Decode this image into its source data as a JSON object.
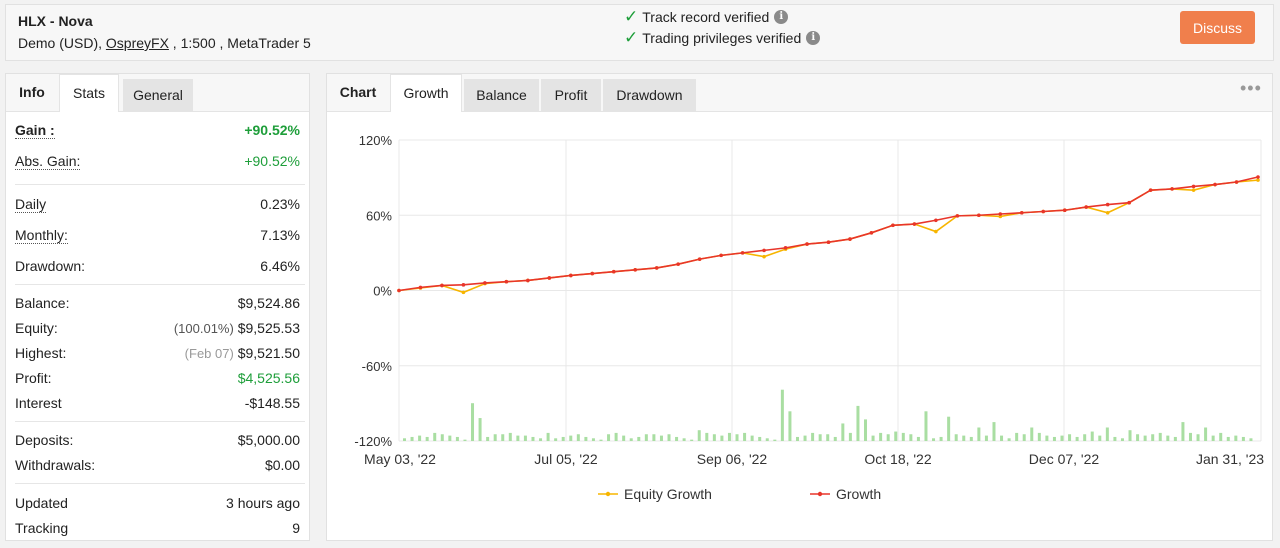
{
  "header": {
    "account_name": "HLX - Nova",
    "info_prefix": "Demo (USD), ",
    "broker": "OspreyFX",
    "info_suffix": " , 1:500 , MetaTrader 5",
    "verify_track": "Track record verified",
    "verify_trading": "Trading privileges verified",
    "discuss_label": "Discuss"
  },
  "left_tabs": {
    "title": "Info",
    "active": "Stats",
    "other": "General"
  },
  "stats": {
    "gain": {
      "label": "Gain :",
      "value": "+90.52%"
    },
    "abs_gain": {
      "label": "Abs. Gain:",
      "value": "+90.52%"
    },
    "daily": {
      "label": "Daily",
      "value": "0.23%"
    },
    "monthly": {
      "label": "Monthly:",
      "value": "7.13%"
    },
    "drawdown": {
      "label": "Drawdown:",
      "value": "6.46%"
    },
    "balance": {
      "label": "Balance:",
      "value": "$9,524.86"
    },
    "equity": {
      "label": "Equity:",
      "prefix": "(100.01%)",
      "value": "$9,525.53"
    },
    "highest": {
      "label": "Highest:",
      "prefix": "(Feb 07)",
      "value": "$9,521.50"
    },
    "profit": {
      "label": "Profit:",
      "value": "$4,525.56"
    },
    "interest": {
      "label": "Interest",
      "value": "-$148.55"
    },
    "deposits": {
      "label": "Deposits:",
      "value": "$5,000.00"
    },
    "withdrawals": {
      "label": "Withdrawals:",
      "value": "$0.00"
    },
    "updated": {
      "label": "Updated",
      "value": "3 hours ago"
    },
    "tracking": {
      "label": "Tracking",
      "value": "9"
    }
  },
  "chart_tabs": {
    "title": "Chart",
    "active": "Growth",
    "others": [
      "Balance",
      "Profit",
      "Drawdown"
    ]
  },
  "colors": {
    "equity": "#f7b500",
    "growth": "#e8352a",
    "bars": "#a9dea2",
    "accent": "#f07f4c",
    "positive": "#1e9e3a"
  },
  "chart_data": {
    "type": "line",
    "title": "",
    "y_ticks": [
      "120%",
      "60%",
      "0%",
      "-60%",
      "-120%"
    ],
    "ylim": [
      -120,
      120
    ],
    "x_ticks": [
      "May 03, '22",
      "Jul 05, '22",
      "Sep 06, '22",
      "Oct 18, '22",
      "Dec 07, '22",
      "Jan 31, '23"
    ],
    "legend": [
      "Equity Growth",
      "Growth"
    ],
    "legend_position": "bottom",
    "grid": true,
    "series": [
      {
        "name": "Growth",
        "values": [
          0,
          2.5,
          4,
          4.5,
          6,
          7,
          8,
          10,
          12,
          13.5,
          15,
          16.5,
          18,
          21,
          25,
          28,
          30,
          32,
          34,
          37,
          38.5,
          41,
          46,
          52,
          53,
          56,
          59.5,
          60,
          61,
          62,
          63,
          64,
          66.5,
          68.5,
          70,
          80,
          81,
          83,
          84.5,
          86.5,
          90.5
        ]
      },
      {
        "name": "Equity Growth",
        "values": [
          0,
          2,
          4,
          -1.5,
          5.5,
          7,
          8,
          10,
          12,
          13.5,
          15,
          16.5,
          18,
          21,
          25,
          28,
          30,
          27,
          33,
          37,
          38.5,
          41,
          46,
          52,
          53,
          47,
          59.5,
          60,
          59,
          62,
          63,
          64,
          66.5,
          62,
          70,
          80,
          81,
          80,
          84.5,
          86.5,
          88
        ]
      }
    ],
    "bar_heights": [
      2,
      3,
      4,
      3,
      6,
      5,
      4,
      3,
      1,
      28,
      17,
      3,
      5,
      5,
      6,
      4,
      4,
      3,
      2,
      6,
      2,
      3,
      4,
      5,
      3,
      2,
      1,
      5,
      6,
      4,
      2,
      3,
      5,
      5,
      4,
      5,
      3,
      2,
      1,
      8,
      6,
      5,
      4,
      6,
      5,
      6,
      4,
      3,
      2,
      1,
      38,
      22,
      3,
      4,
      6,
      5,
      5,
      3,
      13,
      6,
      26,
      16,
      4,
      6,
      5,
      7,
      6,
      5,
      3,
      22,
      2,
      3,
      18,
      5,
      4,
      3,
      10,
      4,
      14,
      4,
      2,
      6,
      5,
      10,
      6,
      4,
      3,
      4,
      5,
      3,
      5,
      7,
      4,
      10,
      3,
      2,
      8,
      5,
      4,
      5,
      6,
      4,
      3,
      14,
      6,
      5,
      10,
      4,
      6,
      3,
      4,
      3,
      2
    ]
  }
}
